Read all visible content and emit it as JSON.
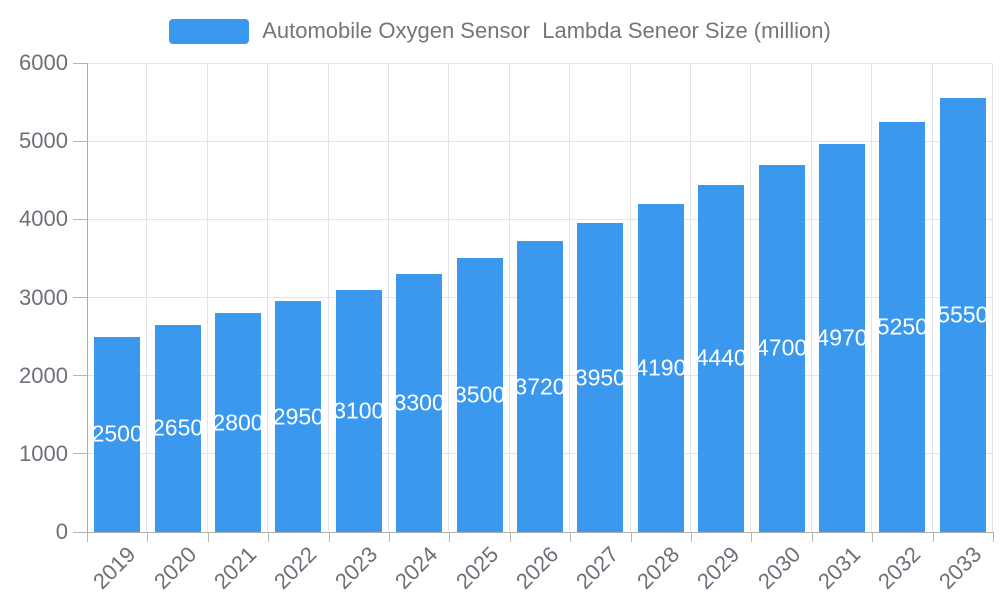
{
  "legend": {
    "label": "Automobile Oxygen Sensor  Lambda Seneor Size (million)"
  },
  "colors": {
    "bar": "#3A99EE",
    "grid": "#E3E4E9",
    "axis": "#ADADAD",
    "tick": "#B5B5B5",
    "axis_label": "#6E7079",
    "legend_text": "#73757D",
    "bar_label": "#FFFFFF"
  },
  "chart_data": {
    "type": "bar",
    "title": "Automobile Oxygen Sensor  Lambda Seneor Size (million)",
    "categories": [
      "2019",
      "2020",
      "2021",
      "2022",
      "2023",
      "2024",
      "2025",
      "2026",
      "2027",
      "2028",
      "2029",
      "2030",
      "2031",
      "2032",
      "2033"
    ],
    "values": [
      2500,
      2650,
      2800,
      2950,
      3100,
      3300,
      3500,
      3720,
      3950,
      4190,
      4440,
      4700,
      4970,
      5250,
      5550
    ],
    "xlabel": "",
    "ylabel": "",
    "ylim": [
      0,
      6000
    ],
    "y_ticks": [
      0,
      1000,
      2000,
      3000,
      4000,
      5000,
      6000
    ],
    "grid": true,
    "legend_position": "top-center",
    "bar_label_position": "inside-middle",
    "bar_label_color": "#FFFFFF",
    "x_label_rotation": -45
  }
}
